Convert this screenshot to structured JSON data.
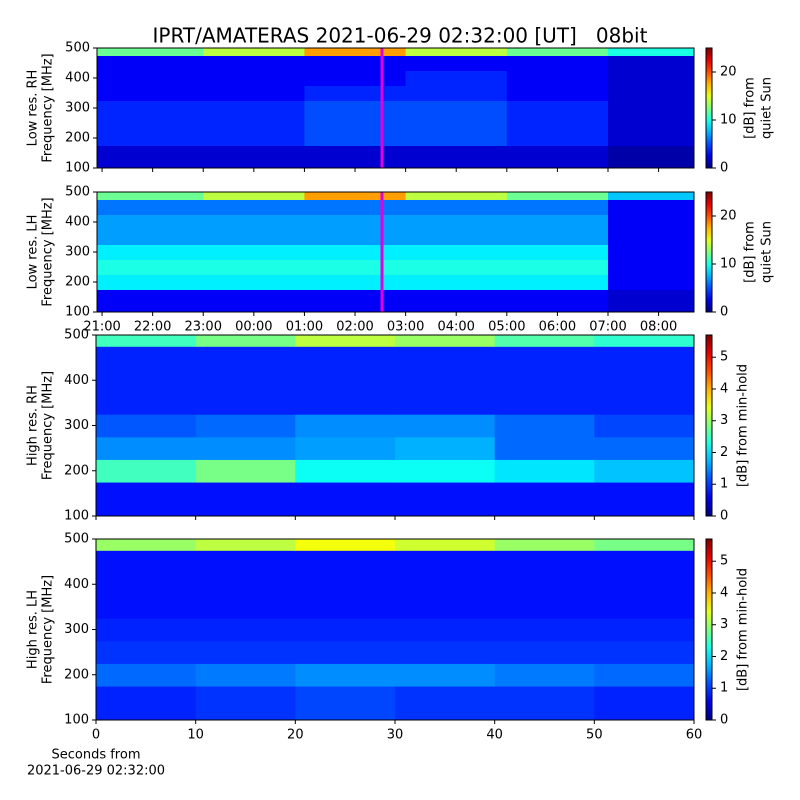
{
  "title": "IPRT/AMATERAS 2021-06-29 02:32:00 [UT]   08bit",
  "chart_data": [
    {
      "type": "heatmap",
      "ylabel": [
        "Low res. RH",
        "Frequency [MHz]"
      ],
      "x_bins": [
        20.9,
        23,
        25,
        27,
        29,
        31,
        32.7
      ],
      "y_bins": [
        100,
        175,
        225,
        275,
        325,
        375,
        425,
        475,
        500
      ],
      "values": [
        [
          2,
          2,
          2,
          2,
          2,
          1
        ],
        [
          4,
          4,
          5,
          5,
          4,
          2
        ],
        [
          4,
          4,
          5,
          5,
          4,
          2
        ],
        [
          4,
          4,
          5,
          5,
          4,
          2
        ],
        [
          3,
          3,
          4,
          4,
          3,
          2
        ],
        [
          3,
          3,
          3,
          4,
          3,
          2
        ],
        [
          3,
          3,
          3,
          3,
          3,
          2
        ],
        [
          12,
          14,
          18,
          14,
          12,
          10
        ]
      ],
      "xlim": [
        20.9,
        32.7
      ],
      "xticks": [
        21,
        22,
        23,
        24,
        25,
        26,
        27,
        28,
        29,
        30,
        31,
        32
      ],
      "ylim": [
        100,
        500
      ],
      "yticks": [
        100,
        200,
        300,
        400,
        500
      ],
      "marker_x": 26.5333,
      "marker_color": "#e000e0",
      "clim": [
        0,
        25
      ],
      "cbar_ticks": [
        0,
        10,
        20
      ],
      "cbar_label": [
        "[dB] from",
        "quiet Sun"
      ]
    },
    {
      "type": "heatmap",
      "ylabel": [
        "Low res. LH",
        "Frequency [MHz]"
      ],
      "x_bins": [
        20.9,
        23,
        25,
        27,
        29,
        31,
        32.7
      ],
      "y_bins": [
        100,
        175,
        225,
        275,
        325,
        375,
        425,
        475,
        500
      ],
      "values": [
        [
          3,
          3,
          3,
          3,
          3,
          2
        ],
        [
          9,
          9,
          9,
          9,
          9,
          3
        ],
        [
          10,
          10,
          10,
          10,
          10,
          3
        ],
        [
          9,
          9,
          9,
          9,
          9,
          3
        ],
        [
          7,
          7,
          7,
          7,
          7,
          3
        ],
        [
          7,
          7,
          7,
          7,
          7,
          3
        ],
        [
          6,
          6,
          6,
          6,
          6,
          3
        ],
        [
          12,
          14,
          18,
          14,
          12,
          8
        ]
      ],
      "xlim": [
        20.9,
        32.7
      ],
      "xticks": [
        {
          "value": 21,
          "label": "21:00"
        },
        {
          "value": 22,
          "label": "22:00"
        },
        {
          "value": 23,
          "label": "23:00"
        },
        {
          "value": 24,
          "label": "00:00"
        },
        {
          "value": 25,
          "label": "01:00"
        },
        {
          "value": 26,
          "label": "02:00"
        },
        {
          "value": 27,
          "label": "03:00"
        },
        {
          "value": 28,
          "label": "04:00"
        },
        {
          "value": 29,
          "label": "05:00"
        },
        {
          "value": 30,
          "label": "06:00"
        },
        {
          "value": 31,
          "label": "07:00"
        },
        {
          "value": 32,
          "label": "08:00"
        }
      ],
      "ylim": [
        100,
        500
      ],
      "yticks": [
        100,
        200,
        300,
        400,
        500
      ],
      "marker_x": 26.5333,
      "marker_color": "#e000e0",
      "clim": [
        0,
        25
      ],
      "cbar_ticks": [
        0,
        10,
        20
      ],
      "cbar_label": [
        "[dB] from",
        "quiet Sun"
      ]
    },
    {
      "type": "heatmap",
      "ylabel": [
        "High res. RH",
        "Frequency [MHz]"
      ],
      "x_bins": [
        0,
        10,
        20,
        30,
        40,
        50,
        60
      ],
      "y_bins": [
        100,
        175,
        225,
        275,
        325,
        375,
        425,
        475,
        500
      ],
      "values": [
        [
          0.8,
          0.8,
          0.8,
          0.8,
          0.8,
          0.8
        ],
        [
          2.5,
          2.8,
          2.2,
          2.2,
          2.0,
          1.8
        ],
        [
          1.5,
          1.5,
          1.6,
          1.7,
          1.3,
          1.3
        ],
        [
          1.2,
          1.3,
          1.5,
          1.5,
          1.3,
          1.1
        ],
        [
          0.9,
          0.9,
          0.9,
          0.9,
          0.9,
          0.9
        ],
        [
          0.9,
          0.9,
          0.9,
          0.9,
          0.9,
          0.9
        ],
        [
          0.9,
          0.9,
          0.9,
          0.9,
          0.9,
          0.9
        ],
        [
          2.5,
          2.8,
          3.2,
          3.0,
          2.6,
          2.4
        ]
      ],
      "xlim": [
        0,
        60
      ],
      "xticks": [
        0,
        10,
        20,
        30,
        40,
        50,
        60
      ],
      "ylim": [
        100,
        500
      ],
      "yticks": [
        100,
        200,
        300,
        400,
        500
      ],
      "clim": [
        0,
        5.7
      ],
      "cbar_ticks": [
        0,
        1,
        2,
        3,
        4,
        5
      ],
      "cbar_label": [
        "[dB] from min-hold"
      ]
    },
    {
      "type": "heatmap",
      "ylabel": [
        "High res. LH",
        "Frequency [MHz]"
      ],
      "x_bins": [
        0,
        10,
        20,
        30,
        40,
        50,
        60
      ],
      "y_bins": [
        100,
        175,
        225,
        275,
        325,
        375,
        425,
        475,
        500
      ],
      "values": [
        [
          0.9,
          1.0,
          1.1,
          1.0,
          1.0,
          0.9
        ],
        [
          1.3,
          1.4,
          1.5,
          1.5,
          1.4,
          1.3
        ],
        [
          1.0,
          1.0,
          1.0,
          1.0,
          1.0,
          1.0
        ],
        [
          0.9,
          0.9,
          0.9,
          0.9,
          0.9,
          0.9
        ],
        [
          0.8,
          0.8,
          0.8,
          0.8,
          0.8,
          0.8
        ],
        [
          0.8,
          0.8,
          0.8,
          0.8,
          0.8,
          0.8
        ],
        [
          0.8,
          0.8,
          0.8,
          0.8,
          0.8,
          0.8
        ],
        [
          3.0,
          3.2,
          3.5,
          3.3,
          3.0,
          2.8
        ]
      ],
      "xlim": [
        0,
        60
      ],
      "xticks": [
        0,
        10,
        20,
        30,
        40,
        50,
        60
      ],
      "xlabel": [
        "Seconds from",
        "2021-06-29 02:32:00"
      ],
      "ylim": [
        100,
        500
      ],
      "yticks": [
        100,
        200,
        300,
        400,
        500
      ],
      "clim": [
        0,
        5.7
      ],
      "cbar_ticks": [
        0,
        1,
        2,
        3,
        4,
        5
      ],
      "cbar_label": [
        "[dB] from min-hold"
      ]
    }
  ]
}
